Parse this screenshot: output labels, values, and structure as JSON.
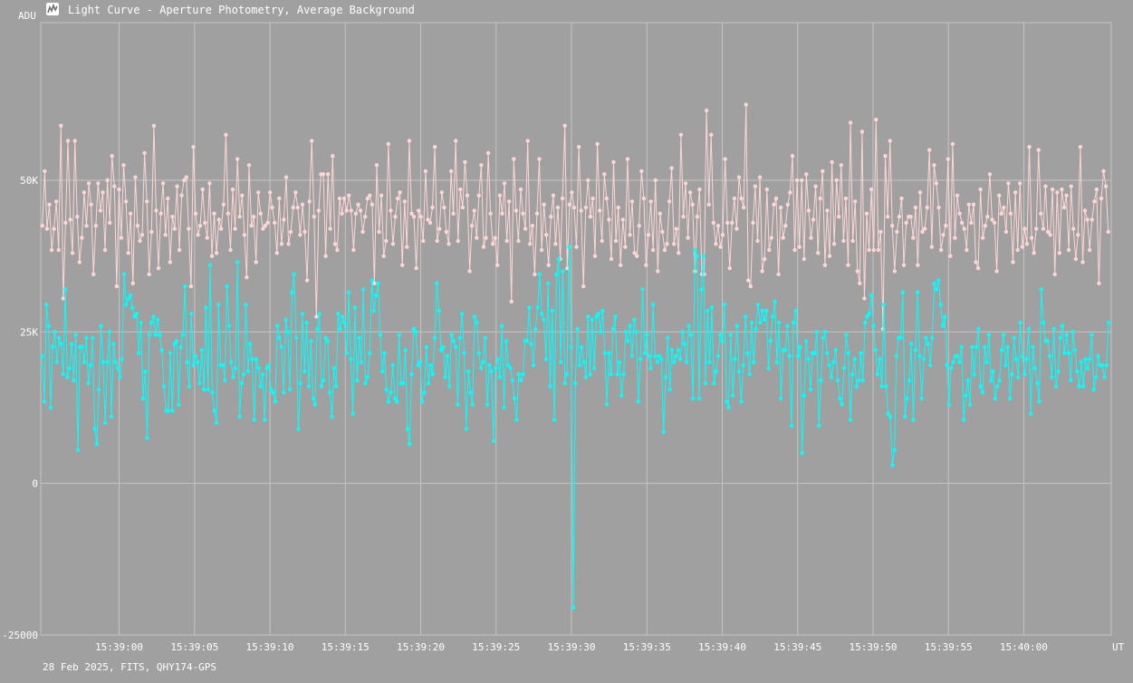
{
  "window": {
    "title": "Light Curve - Aperture Photometry, Average Background",
    "icon": "light-curve-app-icon"
  },
  "footer": {
    "info": "28 Feb 2025, FITS, QHY174-GPS"
  },
  "colors": {
    "background": "#a0a0a0",
    "grid": "#c4c4c4",
    "series_target": "#ffd6d6",
    "series_comparison": "#00ffff",
    "text": "#ffffff"
  },
  "chart_data": {
    "type": "line",
    "title": "Light Curve - Aperture Photometry, Average Background",
    "ylabel": "ADU",
    "xlabel": "UT",
    "ylim": [
      -25000,
      76000
    ],
    "xlim_seconds_after_15_38_55": [
      -5.2,
      65.8
    ],
    "y_ticks": [
      {
        "value": -25000,
        "label": "-25000"
      },
      {
        "value": 0,
        "label": "0"
      },
      {
        "value": 25000,
        "label": "25K"
      },
      {
        "value": 50000,
        "label": "50K"
      }
    ],
    "x_ticks": [
      {
        "value": 0,
        "label": "15:39:00"
      },
      {
        "value": 5,
        "label": "15:39:05"
      },
      {
        "value": 10,
        "label": "15:39:10"
      },
      {
        "value": 15,
        "label": "15:39:15"
      },
      {
        "value": 20,
        "label": "15:39:20"
      },
      {
        "value": 25,
        "label": "15:39:25"
      },
      {
        "value": 30,
        "label": "15:39:30"
      },
      {
        "value": 35,
        "label": "15:39:35"
      },
      {
        "value": 40,
        "label": "15:39:40"
      },
      {
        "value": 45,
        "label": "15:39:45"
      },
      {
        "value": 50,
        "label": "15:39:50"
      },
      {
        "value": 55,
        "label": "15:39:55"
      },
      {
        "value": 60,
        "label": "15:40:00"
      }
    ],
    "grid": true,
    "legend": "none",
    "series": [
      {
        "values": [
          42500,
          51500,
          42000,
          46000,
          38500,
          42000,
          46500,
          38500,
          59000,
          30500,
          43000,
          56500,
          43500,
          38000,
          56500,
          44000,
          36500,
          40500,
          48000,
          42500,
          49500,
          46000,
          34500,
          42500,
          49500,
          45000,
          48000,
          38500,
          50000,
          43000,
          54000,
          49000,
          32500,
          48500,
          40500,
          52500,
          46500,
          38000,
          44500,
          33000,
          50500,
          42500,
          40000,
          41000,
          54500,
          46500,
          34500,
          41500,
          59000,
          45000,
          35500,
          44500,
          49500,
          41000,
          47000,
          36500,
          44000,
          42000,
          49000,
          38500,
          47500,
          50000,
          50500,
          42000,
          32500,
          55500,
          44500,
          41000,
          42500,
          48500,
          43000,
          40500,
          49500,
          37500,
          44500,
          38000,
          43500,
          42000,
          46000,
          57500,
          44500,
          38500,
          48500,
          42000,
          53500,
          44000,
          47500,
          41000,
          34000,
          52500,
          42500,
          44000,
          36500,
          48000,
          44500,
          42000,
          42500,
          43000,
          48000,
          45500,
          43000,
          38000,
          47000,
          39500,
          43500,
          50500,
          39500,
          41500,
          45500,
          48000,
          45500,
          41000,
          46000,
          41500,
          33500,
          46500,
          56500,
          44000,
          27500,
          45000,
          51000,
          51000,
          37500,
          51000,
          42000,
          54000,
          39500,
          38500,
          47000,
          44500,
          47000,
          45000,
          47500,
          45000,
          38500,
          44500,
          46000,
          45000,
          41500,
          44000,
          47000,
          47500,
          46000,
          33000,
          52500,
          41500,
          47500,
          37500,
          40000,
          56000,
          45000,
          39500,
          44000,
          47000,
          48000,
          36000,
          46500,
          39000,
          56500,
          44500,
          44000,
          35500,
          45000,
          44000,
          40000,
          51500,
          43500,
          43000,
          45500,
          55500,
          40000,
          42000,
          48000,
          45500,
          41500,
          39500,
          51500,
          44500,
          56500,
          40000,
          48500,
          45500,
          53000,
          47500,
          35000,
          42500,
          45000,
          40500,
          47500,
          52500,
          39000,
          40500,
          54500,
          44500,
          39500,
          40500,
          36000,
          47500,
          44500,
          49500,
          40000,
          46500,
          30000,
          53500,
          45000,
          40000,
          48500,
          44500,
          42000,
          56500,
          39500,
          42500,
          34500,
          44500,
          53500,
          38500,
          46000,
          41000,
          36000,
          44000,
          47500,
          39500,
          45500,
          37000,
          47000,
          59000,
          35500,
          46000,
          48000,
          45500,
          39000,
          55500,
          45000,
          32500,
          45500,
          50000,
          44000,
          47000,
          37500,
          56000,
          45000,
          40000,
          51000,
          47000,
          43500,
          37000,
          53000,
          40000,
          45500,
          36000,
          43500,
          39000,
          53500,
          41000,
          46500,
          38000,
          37500,
          42500,
          51500,
          47000,
          36000,
          41000,
          46500,
          38500,
          50000,
          35000,
          44500,
          41500,
          38500,
          39500,
          46500,
          52000,
          39500,
          42000,
          38000,
          57500,
          44000,
          49500,
          40500,
          48000,
          46000,
          35000,
          44000,
          48500,
          34500,
          34500,
          61500,
          46000,
          57500,
          43000,
          39500,
          42500,
          39000,
          41000,
          53500,
          43000,
          35500,
          43000,
          47000,
          42000,
          50500,
          47000,
          45500,
          62500,
          33500,
          32500,
          43000,
          49000,
          40000,
          50500,
          35000,
          37000,
          48500,
          38500,
          40500,
          46000,
          47000,
          34500,
          45500,
          40500,
          42500,
          46000,
          48000,
          54000,
          38500,
          50000,
          39000,
          50000,
          37000,
          51000,
          45000,
          40500,
          43500,
          49000,
          38000,
          47000,
          51500,
          36000,
          45000,
          37500,
          53000,
          39500,
          50000,
          44000,
          52500,
          40000,
          47000,
          36000,
          59500,
          40000,
          46500,
          35000,
          33000,
          58000,
          30500,
          44500,
          38500,
          48500,
          38500,
          60000,
          38500,
          41500,
          25500,
          54000,
          44000,
          56500,
          42500,
          35000,
          41500,
          44000,
          47000,
          36000,
          43000,
          44000,
          44000,
          40500,
          45500,
          36000,
          48000,
          41500,
          42000,
          45500,
          55000,
          39000,
          52500,
          49500,
          45500,
          38500,
          41000,
          42500,
          53500,
          37500,
          56000,
          40500,
          47500,
          44500,
          43000,
          42000,
          38500,
          46000,
          43000,
          46000,
          36500,
          35500,
          48500,
          40500,
          42500,
          44000,
          51000,
          43500,
          43000,
          35000,
          47500,
          44500,
          45500,
          41500,
          49500,
          44500,
          36500,
          48000,
          38500,
          49500,
          39000,
          42000,
          39500,
          55500,
          40500,
          38000,
          42000,
          55000,
          44500,
          42000,
          49000,
          41500,
          41000,
          48500,
          34500,
          48000,
          38000,
          48500,
          45500,
          47500,
          38500,
          49000,
          42000,
          37000,
          41000,
          55500,
          36500,
          45000,
          43500,
          38500,
          43500,
          46500,
          48500,
          33000,
          47000,
          51500,
          49000,
          41500
        ]
      },
      {
        "values": [
          21000,
          13500,
          29500,
          26000,
          12500,
          22500,
          25000,
          20000,
          24000,
          23000,
          18000,
          32000,
          17500,
          19000,
          23000,
          17000,
          24500,
          5500,
          22500,
          22500,
          20000,
          24000,
          16500,
          19500,
          24000,
          9000,
          6500,
          15500,
          26000,
          20000,
          10000,
          20000,
          25000,
          11000,
          23000,
          20000,
          19000,
          17500,
          20500,
          34500,
          29500,
          30500,
          31000,
          29000,
          27500,
          28000,
          21500,
          26500,
          14000,
          18500,
          7500,
          24500,
          26500,
          27500,
          24500,
          27000,
          24500,
          22000,
          16000,
          12000,
          12000,
          21500,
          12000,
          23000,
          23500,
          13000,
          22500,
          24500,
          32500,
          20000,
          16000,
          28000,
          19500,
          21000,
          20000,
          16500,
          22000,
          15500,
          29000,
          15500,
          36000,
          15000,
          12000,
          10000,
          29500,
          19500,
          19500,
          17000,
          32500,
          26000,
          20000,
          17500,
          19000,
          36500,
          11000,
          16500,
          18000,
          29500,
          18500,
          23000,
          20500,
          10500,
          20500,
          19000,
          16000,
          18000,
          10500,
          19000,
          19500,
          15500,
          15000,
          13500,
          26000,
          24000,
          22500,
          15000,
          27000,
          25000,
          15500,
          31500,
          34500,
          24000,
          9000,
          16500,
          28000,
          18500,
          26500,
          16000,
          23500,
          14000,
          13000,
          25500,
          28000,
          16000,
          17000,
          24000,
          23500,
          15000,
          11000,
          19000,
          16000,
          28000,
          25500,
          27500,
          26500,
          21500,
          31500,
          20500,
          11500,
          29000,
          17000,
          24000,
          20000,
          32000,
          16500,
          17500,
          21500,
          33500,
          28500,
          31000,
          33000,
          24500,
          18500,
          21500,
          15500,
          13500,
          15000,
          19500,
          14000,
          13500,
          24500,
          16500,
          16500,
          22000,
          9000,
          6500,
          18000,
          25500,
          25000,
          19500,
          20000,
          13500,
          15000,
          22500,
          16500,
          19500,
          18000,
          24000,
          33000,
          28500,
          22000,
          22500,
          17500,
          21000,
          16000,
          24500,
          23500,
          22500,
          13000,
          24000,
          28000,
          21500,
          9000,
          18500,
          15000,
          13000,
          27500,
          26500,
          21500,
          19000,
          20000,
          24000,
          13000,
          19500,
          18500,
          7000,
          19000,
          20500,
          17500,
          26000,
          12500,
          23500,
          19500,
          19000,
          17000,
          14000,
          10500,
          18000,
          17000,
          18000,
          23500,
          23500,
          29000,
          23000,
          19500,
          25500,
          29000,
          34500,
          28000,
          27000,
          20500,
          33000,
          16000,
          28500,
          10500,
          34500,
          37000,
          20000,
          35000,
          16500,
          18000,
          39000,
          22500,
          -20500,
          16500,
          25500,
          19500,
          22500,
          20000,
          17500,
          27500,
          18000,
          27000,
          19000,
          27500,
          28000,
          25000,
          28500,
          21500,
          13000,
          21500,
          18000,
          25500,
          27500,
          18000,
          20000,
          14500,
          18000,
          25000,
          23500,
          26000,
          21000,
          27000,
          25000,
          13500,
          20500,
          32000,
          21500,
          24500,
          21000,
          19000,
          29500,
          21000,
          20000,
          21000,
          20500,
          8500,
          17500,
          24000,
          15500,
          22000,
          20000,
          21000,
          22000,
          20500,
          25000,
          23000,
          20000,
          26000,
          24500,
          14000,
          38500,
          37500,
          14000,
          32000,
          37500,
          16500,
          28500,
          20000,
          29000,
          16500,
          18500,
          21000,
          24500,
          23500,
          29500,
          13500,
          12500,
          24500,
          14500,
          20500,
          26000,
          18500,
          13500,
          19500,
          27500,
          21500,
          18000,
          26500,
          20000,
          25500,
          29500,
          26500,
          28500,
          27000,
          28500,
          19000,
          23500,
          27500,
          30000,
          20000,
          26500,
          14000,
          22000,
          22000,
          26000,
          21000,
          9500,
          26500,
          28500,
          21000,
          22500,
          5000,
          14500,
          23500,
          20500,
          15500,
          21500,
          21500,
          25000,
          9500,
          17000,
          24000,
          25000,
          21500,
          19500,
          17500,
          20000,
          22000,
          17000,
          14000,
          13000,
          19000,
          24500,
          21500,
          10500,
          18000,
          20500,
          16000,
          17000,
          21500,
          17000,
          26500,
          27500,
          28000,
          31000,
          26000,
          22000,
          18000,
          20500,
          16000,
          29500,
          16000,
          11500,
          11000,
          3000,
          5500,
          21000,
          24000,
          24000,
          31500,
          11000,
          14000,
          17000,
          23000,
          10500,
          22000,
          31500,
          21000,
          14000,
          20500,
          24000,
          23000,
          19500,
          24000,
          33000,
          32000,
          33500,
          29500,
          26000,
          27500,
          19500,
          13000,
          19000,
          20000,
          21000,
          21000,
          20000,
          22500,
          10500,
          14500,
          17000,
          13000,
          22500,
          18000,
          22500,
          25500,
          16000,
          15000,
          22500,
          20000,
          24500,
          17000,
          18500,
          14000,
          16000,
          17000,
          22000,
          24500,
          19500,
          22500,
          14000,
          18000,
          24000,
          20500,
          17500,
          26500,
          21000,
          18000,
          20500,
          25500,
          11500,
          22500,
          19000,
          16500,
          13500,
          32000,
          26500,
          23500,
          23500,
          21000,
          17500,
          25500,
          16000,
          18500,
          24000,
          26000,
          21500,
          24500,
          21500,
          17000,
          25000,
          22000,
          18500,
          16000,
          20000,
          16000,
          20500,
          19000,
          20500,
          24500,
          15500,
          17500,
          21000,
          19500,
          19500,
          17500,
          19500,
          26500
        ]
      }
    ]
  }
}
